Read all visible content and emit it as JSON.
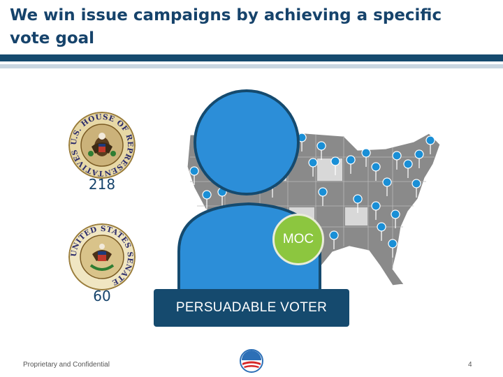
{
  "slide": {
    "title": "We win issue campaigns by achieving a specific vote goal",
    "house": {
      "seal_text": "U.S. HOUSE OF REPRESENTATIVES",
      "count": "218"
    },
    "senate": {
      "seal_text": "UNITED STATES SENATE",
      "count": "60"
    },
    "moc_label": "MOC",
    "voter_label": "PERSUADABLE VOTER",
    "footer_left": "Proprietary and Confidential",
    "page_number": "4"
  },
  "colors": {
    "navy": "#154a6e",
    "person_blue": "#2c8ed8",
    "moc_green": "#8cc63f",
    "map_gray": "#8a8a8a",
    "pin_blue": "#1a8fd6"
  }
}
